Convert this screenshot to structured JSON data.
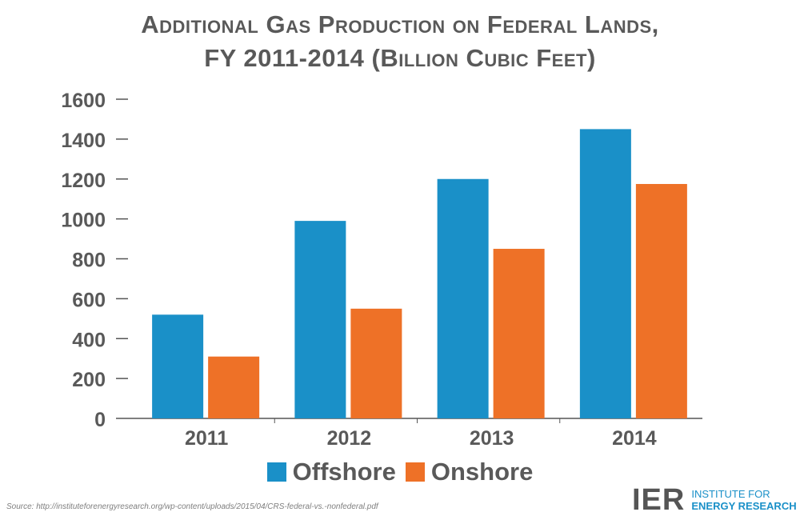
{
  "chart_data": {
    "type": "bar",
    "title_line1": "Additional Gas Production on Federal Lands,",
    "title_line2": "FY 2011-2014 (Billion Cubic Feet)",
    "categories": [
      "2011",
      "2012",
      "2013",
      "2014"
    ],
    "series": [
      {
        "name": "Offshore",
        "color": "#1a90c8",
        "values": [
          520,
          990,
          1200,
          1450
        ]
      },
      {
        "name": "Onshore",
        "color": "#ee7127",
        "values": [
          310,
          550,
          850,
          1175
        ]
      }
    ],
    "ylim": [
      0,
      1600
    ],
    "yticks": [
      0,
      200,
      400,
      600,
      800,
      1000,
      1200,
      1400,
      1600
    ],
    "grid": false,
    "legend": "bottom"
  },
  "source_text": "Source: http://instituteforenergyresearch.org/wp-content/uploads/2015/04/CRS-federal-vs.-nonfederal.pdf",
  "logo": {
    "mark": "IER",
    "line1": "INSTITUTE FOR",
    "line2": "ENERGY RESEARCH"
  }
}
